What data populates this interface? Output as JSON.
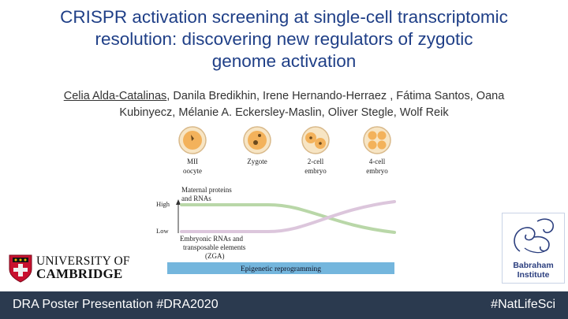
{
  "title": {
    "line1": "CRISPR activation screening at single-cell transcriptomic",
    "line2": "resolution: discovering new regulators of zygotic",
    "line3": "genome activation"
  },
  "authors": {
    "first_author": "Celia Alda-Catalinas",
    "rest_line1": ", Danila Bredikhin, Irene Hernando-Herraez , Fátima Santos, Oana",
    "line2": "Kubinyecz, Mélanie A. Eckersley-Maslin, Oliver Stegle, Wolf Reik"
  },
  "figure": {
    "stages": [
      {
        "line1": "MII",
        "line2": "oocyte"
      },
      {
        "line1": "Zygote",
        "line2": ""
      },
      {
        "line1": "2-cell",
        "line2": "embryo"
      },
      {
        "line1": "4-cell",
        "line2": "embryo"
      }
    ],
    "y_high": "High",
    "y_low": "Low",
    "maternal_label_1": "Maternal proteins",
    "maternal_label_2": "and RNAs",
    "embryonic_label_1": "Embryonic RNAs and",
    "embryonic_label_2": "transposable elements",
    "embryonic_label_3": "(ZGA)",
    "bar_label": "Epigenetic reprogramming",
    "colors": {
      "maternal_line": "#b9d7a8",
      "embryonic_line": "#dcc6dc",
      "bar": "#74b6dd",
      "cell_outer": "#f7e5c4",
      "cell_inner": "#f3b25b"
    }
  },
  "logos": {
    "cambridge_line1": "UNIVERSITY OF",
    "cambridge_line2": "CAMBRIDGE",
    "babraham_line1": "Babraham",
    "babraham_line2": "Institute"
  },
  "footer": {
    "left": "DRA Poster Presentation #DRA2020",
    "right": "#NatLifeSci"
  },
  "colors": {
    "title": "#1f3f87",
    "footer_bg": "#2b3a4f"
  }
}
